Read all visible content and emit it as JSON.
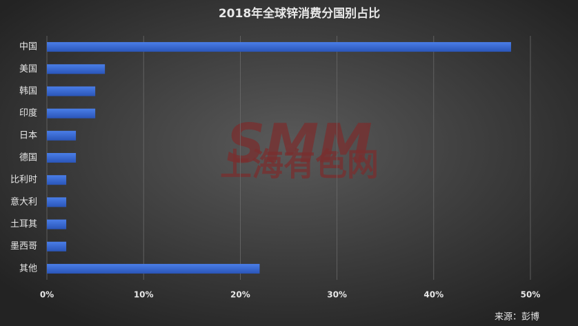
{
  "chart_data": {
    "type": "barh",
    "title": "2018年全球锌消费分国别占比",
    "categories": [
      "中国",
      "美国",
      "韩国",
      "印度",
      "日本",
      "德国",
      "比利时",
      "意大利",
      "土耳其",
      "墨西哥",
      "其他"
    ],
    "values": [
      48,
      6,
      5,
      5,
      3,
      3,
      2,
      2,
      2,
      2,
      22
    ],
    "color": "#3566d6",
    "xlim": [
      0,
      50
    ],
    "xticks": [
      {
        "value": 0,
        "label": "0%"
      },
      {
        "value": 10,
        "label": "10%"
      },
      {
        "value": 20,
        "label": "20%"
      },
      {
        "value": 30,
        "label": "30%"
      },
      {
        "value": 40,
        "label": "40%"
      },
      {
        "value": 50,
        "label": "50%"
      }
    ],
    "grid": true,
    "source": "来源：彭博",
    "watermark": [
      "SMM",
      "上海有色网"
    ]
  }
}
